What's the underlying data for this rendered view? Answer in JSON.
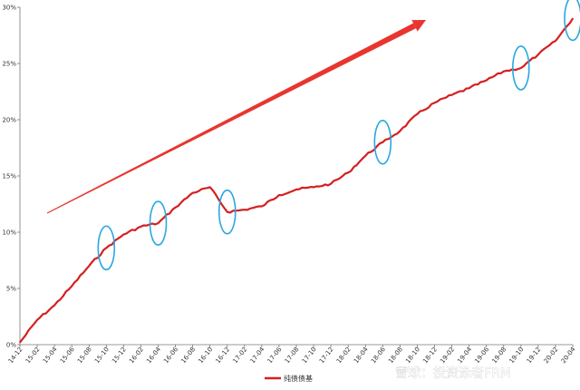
{
  "chart_data": {
    "type": "line",
    "title": "",
    "xlabel": "",
    "ylabel": "",
    "x": [
      "14-12",
      "15-02",
      "15-04",
      "15-06",
      "15-08",
      "15-10",
      "15-12",
      "16-02",
      "16-04",
      "16-06",
      "16-08",
      "16-10",
      "16-12",
      "17-02",
      "17-04",
      "17-06",
      "17-08",
      "17-10",
      "17-12",
      "18-02",
      "18-04",
      "18-06",
      "18-08",
      "18-10",
      "18-12",
      "19-02",
      "19-04",
      "19-06",
      "19-08",
      "19-10",
      "19-12",
      "20-02",
      "20-04"
    ],
    "y_ticks": [
      "0%",
      "5%",
      "10%",
      "15%",
      "20%",
      "25%",
      "30%"
    ],
    "ylim": [
      0,
      30
    ],
    "grid": false,
    "legend_position": "bottom",
    "series": [
      {
        "name": "纯债债基",
        "color": "#d42020",
        "values": [
          0.2,
          2.2,
          3.5,
          5.2,
          7.0,
          8.6,
          9.8,
          10.5,
          10.8,
          12.2,
          13.5,
          14.0,
          11.8,
          12.0,
          12.3,
          13.3,
          13.8,
          14.0,
          14.3,
          15.3,
          16.8,
          18.0,
          19.0,
          20.5,
          21.5,
          22.2,
          22.8,
          23.5,
          24.3,
          24.6,
          25.8,
          27.0,
          29.0
        ]
      }
    ],
    "annotations": {
      "arrow_color": "#e8352e",
      "ellipse_color": "#2aa8e0"
    }
  },
  "watermark": "雪球：投资泳者FRM"
}
